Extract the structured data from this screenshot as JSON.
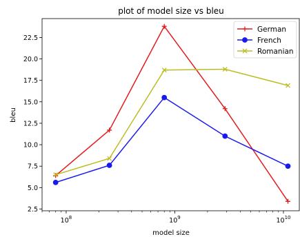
{
  "chart_data": {
    "type": "line",
    "title": "plot of model size vs bleu",
    "xlabel": "model size",
    "ylabel": "bleu",
    "xscale": "log",
    "xlim": [
      60000000,
      14000000000
    ],
    "ylim": [
      2.3,
      24.7
    ],
    "x": [
      80000000,
      250000000,
      800000000,
      2900000000,
      11000000000
    ],
    "yticks": [
      2.5,
      5.0,
      7.5,
      10.0,
      12.5,
      15.0,
      17.5,
      20.0,
      22.5
    ],
    "ytick_labels": [
      "2.5",
      "5.0",
      "7.5",
      "10.0",
      "12.5",
      "15.0",
      "17.5",
      "20.0",
      "22.5"
    ],
    "xticks": [
      {
        "value": 100000000,
        "base": "10",
        "exp": "8"
      },
      {
        "value": 1000000000,
        "base": "10",
        "exp": "9"
      },
      {
        "value": 10000000000,
        "base": "10",
        "exp": "10"
      }
    ],
    "legend_position": "top-right",
    "grid": false,
    "series": [
      {
        "name": "German",
        "color": "#e41a1c",
        "marker": "plus",
        "values": [
          6.4,
          11.7,
          23.8,
          14.2,
          3.4
        ]
      },
      {
        "name": "French",
        "color": "#1a1aee",
        "marker": "circle",
        "values": [
          5.6,
          7.6,
          15.5,
          11.0,
          7.5
        ]
      },
      {
        "name": "Romanian",
        "color": "#bcbd22",
        "marker": "x",
        "values": [
          6.5,
          8.4,
          18.7,
          18.8,
          16.9
        ]
      }
    ]
  }
}
